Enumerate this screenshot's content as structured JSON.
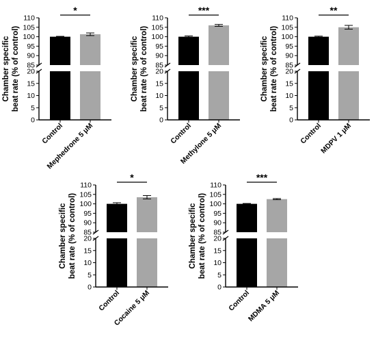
{
  "chart_data": [
    {
      "type": "bar",
      "ylabel": [
        "Chamber specific",
        "beat rate (% of control)"
      ],
      "categories": [
        "Control",
        "Mephedrone 5 μM"
      ],
      "values": [
        100.0,
        101.3
      ],
      "errors": [
        0.2,
        0.7
      ],
      "colors": [
        "#000000",
        "#a6a6a6"
      ],
      "y_axis_break": {
        "lower": [
          0,
          20
        ],
        "upper": [
          85,
          110
        ]
      },
      "yticks_upper": [
        85,
        90,
        95,
        100,
        105,
        110
      ],
      "yticks_lower": [
        0,
        5,
        10,
        15,
        20
      ],
      "significance": "*"
    },
    {
      "type": "bar",
      "ylabel": [
        "Chamber specific",
        "beat rate (% of control)"
      ],
      "categories": [
        "Control",
        "Methylone 5 μM"
      ],
      "values": [
        100.0,
        106.0
      ],
      "errors": [
        0.4,
        0.5
      ],
      "colors": [
        "#000000",
        "#a6a6a6"
      ],
      "y_axis_break": {
        "lower": [
          0,
          20
        ],
        "upper": [
          85,
          110
        ]
      },
      "yticks_upper": [
        85,
        90,
        95,
        100,
        105,
        110
      ],
      "yticks_lower": [
        0,
        5,
        10,
        15,
        20
      ],
      "significance": "***"
    },
    {
      "type": "bar",
      "ylabel": [
        "Chamber specific",
        "beat rate (% of control)"
      ],
      "categories": [
        "Control",
        "MDPV 1 μM"
      ],
      "values": [
        100.0,
        105.0
      ],
      "errors": [
        0.3,
        1.0
      ],
      "colors": [
        "#000000",
        "#a6a6a6"
      ],
      "y_axis_break": {
        "lower": [
          0,
          20
        ],
        "upper": [
          85,
          110
        ]
      },
      "yticks_upper": [
        85,
        90,
        95,
        100,
        105,
        110
      ],
      "yticks_lower": [
        0,
        5,
        10,
        15,
        20
      ],
      "significance": "**"
    },
    {
      "type": "bar",
      "ylabel": [
        "Chamber specific",
        "beat rate (% of control)"
      ],
      "categories": [
        "Control",
        "Cocaine 5 μM"
      ],
      "values": [
        100.0,
        103.5
      ],
      "errors": [
        0.6,
        0.9
      ],
      "colors": [
        "#000000",
        "#a6a6a6"
      ],
      "y_axis_break": {
        "lower": [
          0,
          20
        ],
        "upper": [
          85,
          110
        ]
      },
      "yticks_upper": [
        85,
        90,
        95,
        100,
        105,
        110
      ],
      "yticks_lower": [
        0,
        5,
        10,
        15,
        20
      ],
      "significance": "*"
    },
    {
      "type": "bar",
      "ylabel": [
        "Chamber specific",
        "beat rate (% of control)"
      ],
      "categories": [
        "Control",
        "MDMA 5 μM"
      ],
      "values": [
        100.0,
        102.5
      ],
      "errors": [
        0.2,
        0.3
      ],
      "colors": [
        "#000000",
        "#a6a6a6"
      ],
      "y_axis_break": {
        "lower": [
          0,
          20
        ],
        "upper": [
          85,
          110
        ]
      },
      "yticks_upper": [
        85,
        90,
        95,
        100,
        105,
        110
      ],
      "yticks_lower": [
        0,
        5,
        10,
        15,
        20
      ],
      "significance": "***"
    }
  ]
}
